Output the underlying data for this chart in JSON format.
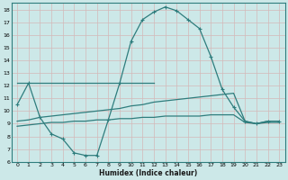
{
  "xlabel": "Humidex (Indice chaleur)",
  "background_color": "#cce8e8",
  "grid_color": "#b8d8d8",
  "line_color": "#2e7d7d",
  "xlim": [
    -0.5,
    23.5
  ],
  "ylim": [
    6,
    18.5
  ],
  "yticks": [
    6,
    7,
    8,
    9,
    10,
    11,
    12,
    13,
    14,
    15,
    16,
    17,
    18
  ],
  "xticks": [
    0,
    1,
    2,
    3,
    4,
    5,
    6,
    7,
    8,
    9,
    10,
    11,
    12,
    13,
    14,
    15,
    16,
    17,
    18,
    19,
    20,
    21,
    22,
    23
  ],
  "series0_x": [
    0,
    1,
    2,
    3,
    4,
    5,
    6,
    7,
    8,
    9,
    10,
    11,
    12,
    13,
    14,
    15,
    16,
    17,
    18,
    19,
    20,
    21,
    22,
    23
  ],
  "series0_y": [
    10.5,
    12.2,
    9.5,
    8.2,
    7.8,
    6.7,
    6.5,
    6.5,
    9.3,
    12.2,
    15.5,
    17.2,
    17.8,
    18.2,
    17.9,
    17.2,
    16.5,
    14.3,
    11.7,
    10.3,
    9.2,
    9.0,
    9.2,
    9.2
  ],
  "series1_x": [
    0,
    12
  ],
  "series1_y": [
    12.2,
    12.2
  ],
  "series2_x": [
    0,
    1,
    2,
    3,
    4,
    5,
    6,
    7,
    8,
    9,
    10,
    11,
    12,
    13,
    14,
    15,
    16,
    17,
    18,
    19,
    20,
    21,
    22,
    23
  ],
  "series2_y": [
    9.2,
    9.3,
    9.5,
    9.6,
    9.7,
    9.8,
    9.9,
    10.0,
    10.1,
    10.2,
    10.4,
    10.5,
    10.7,
    10.8,
    10.9,
    11.0,
    11.1,
    11.2,
    11.3,
    11.4,
    9.2,
    9.0,
    9.2,
    9.2
  ],
  "series3_x": [
    0,
    1,
    2,
    3,
    4,
    5,
    6,
    7,
    8,
    9,
    10,
    11,
    12,
    13,
    14,
    15,
    16,
    17,
    18,
    19,
    20,
    21,
    22,
    23
  ],
  "series3_y": [
    8.8,
    8.9,
    9.0,
    9.1,
    9.1,
    9.2,
    9.2,
    9.3,
    9.3,
    9.4,
    9.4,
    9.5,
    9.5,
    9.6,
    9.6,
    9.6,
    9.6,
    9.7,
    9.7,
    9.7,
    9.1,
    9.0,
    9.1,
    9.1
  ]
}
